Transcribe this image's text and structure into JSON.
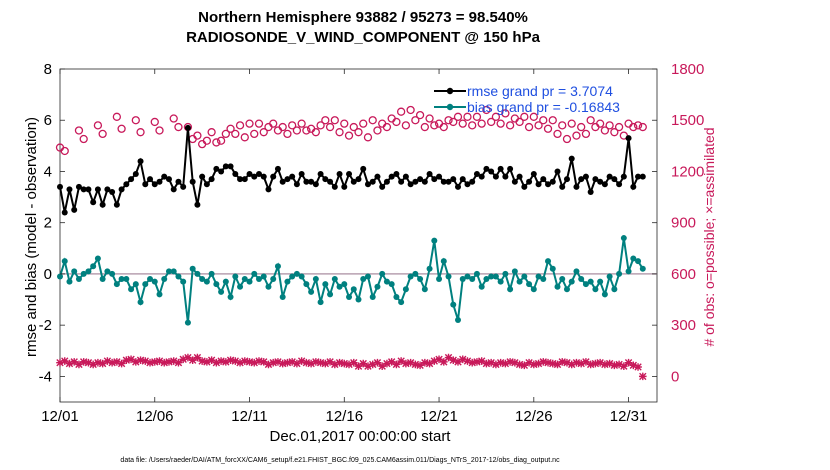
{
  "chart_data": {
    "type": "line",
    "title": "Northern Hemisphere 93882 / 95273 = 98.540%",
    "subtitle": "RADIOSONDE_V_WIND_COMPONENT @ 150 hPa",
    "xlabel": "Dec.01,2017 00:00:00 start",
    "ylabel_left": "rmse and bias (model - observation)",
    "ylabel_right": "# of obs: o=possible; ×=assimilated",
    "xlim": [
      1,
      32.5
    ],
    "ylim_left": [
      -5,
      8
    ],
    "ylim_right": [
      -150,
      1800
    ],
    "x_ticks": [
      1,
      6,
      11,
      16,
      21,
      26,
      31
    ],
    "x_tick_labels": [
      "12/01",
      "12/06",
      "12/11",
      "12/16",
      "12/21",
      "12/26",
      "12/31"
    ],
    "y_ticks_left": [
      -4,
      -2,
      0,
      2,
      4,
      6,
      8
    ],
    "y_tick_labels_left": [
      "-4",
      "-2",
      "0",
      "2",
      "4",
      "6",
      "8"
    ],
    "y_ticks_right": [
      0,
      300,
      600,
      900,
      1200,
      1500,
      1800
    ],
    "y_tick_labels_right": [
      "0",
      "300",
      "600",
      "900",
      "1200",
      "1500",
      "1800"
    ],
    "grid": false,
    "legend_position": "top-right",
    "footnote": "data file: /Users/raeder/DAI/ATM_forcXX/CAM6_setup/f.e21.FHIST_BGC.f09_025.CAM6assim.011/Diags_NTrS_2017-12/obs_diag_output.nc",
    "series": [
      {
        "name": "rmse",
        "legend": "rmse grand pr = 3.7074",
        "color": "#000000",
        "x": [
          1.0,
          1.25,
          1.5,
          1.75,
          2.0,
          2.25,
          2.5,
          2.75,
          3.0,
          3.25,
          3.5,
          3.75,
          4.0,
          4.25,
          4.5,
          4.75,
          5.0,
          5.25,
          5.5,
          5.75,
          6.0,
          6.25,
          6.5,
          6.75,
          7.0,
          7.25,
          7.5,
          7.75,
          8.0,
          8.25,
          8.5,
          8.75,
          9.0,
          9.25,
          9.5,
          9.75,
          10.0,
          10.25,
          10.5,
          10.75,
          11.0,
          11.25,
          11.5,
          11.75,
          12.0,
          12.25,
          12.5,
          12.75,
          13.0,
          13.25,
          13.5,
          13.75,
          14.0,
          14.25,
          14.5,
          14.75,
          15.0,
          15.25,
          15.5,
          15.75,
          16.0,
          16.25,
          16.5,
          16.75,
          17.0,
          17.25,
          17.5,
          17.75,
          18.0,
          18.25,
          18.5,
          18.75,
          19.0,
          19.25,
          19.5,
          19.75,
          20.0,
          20.25,
          20.5,
          20.75,
          21.0,
          21.25,
          21.5,
          21.75,
          22.0,
          22.25,
          22.5,
          22.75,
          23.0,
          23.25,
          23.5,
          23.75,
          24.0,
          24.25,
          24.5,
          24.75,
          25.0,
          25.25,
          25.5,
          25.75,
          26.0,
          26.25,
          26.5,
          26.75,
          27.0,
          27.25,
          27.5,
          27.75,
          28.0,
          28.25,
          28.5,
          28.75,
          29.0,
          29.25,
          29.5,
          29.75,
          30.0,
          30.25,
          30.5,
          30.75,
          31.0,
          31.25,
          31.5,
          31.75
        ],
        "values": [
          3.4,
          2.4,
          3.3,
          2.5,
          3.4,
          3.3,
          3.3,
          2.8,
          3.3,
          2.7,
          3.3,
          3.2,
          2.7,
          3.3,
          3.5,
          3.7,
          3.9,
          4.4,
          3.5,
          3.7,
          3.5,
          3.6,
          3.8,
          3.7,
          3.3,
          3.6,
          3.4,
          5.7,
          3.6,
          2.7,
          3.8,
          3.5,
          3.7,
          4.1,
          4.0,
          4.2,
          4.2,
          3.9,
          3.7,
          3.7,
          3.9,
          3.8,
          3.9,
          3.8,
          3.3,
          3.8,
          4.1,
          3.6,
          3.7,
          3.8,
          3.5,
          3.9,
          3.6,
          3.6,
          3.5,
          3.9,
          3.7,
          3.6,
          3.4,
          3.9,
          3.4,
          3.9,
          3.6,
          3.7,
          4.1,
          3.5,
          3.6,
          3.8,
          3.4,
          3.6,
          3.8,
          3.9,
          3.6,
          3.8,
          3.5,
          3.6,
          3.7,
          3.6,
          3.9,
          3.7,
          3.8,
          3.6,
          3.6,
          3.7,
          3.4,
          3.7,
          3.5,
          3.6,
          3.9,
          3.8,
          4.1,
          4.0,
          3.8,
          4.1,
          3.8,
          4.1,
          3.6,
          3.8,
          3.4,
          3.6,
          3.9,
          3.5,
          3.7,
          3.5,
          3.6,
          4.0,
          3.4,
          3.7,
          4.5,
          3.4,
          3.7,
          3.8,
          3.2,
          3.7,
          3.6,
          3.5,
          3.8,
          3.7,
          3.5,
          3.8,
          5.3,
          3.4,
          3.8,
          3.8
        ]
      },
      {
        "name": "bias",
        "legend": "bias grand pr = -0.16843",
        "color": "#00807f",
        "x": [
          1.0,
          1.25,
          1.5,
          1.75,
          2.0,
          2.25,
          2.5,
          2.75,
          3.0,
          3.25,
          3.5,
          3.75,
          4.0,
          4.25,
          4.5,
          4.75,
          5.0,
          5.25,
          5.5,
          5.75,
          6.0,
          6.25,
          6.5,
          6.75,
          7.0,
          7.25,
          7.5,
          7.75,
          8.0,
          8.25,
          8.5,
          8.75,
          9.0,
          9.25,
          9.5,
          9.75,
          10.0,
          10.25,
          10.5,
          10.75,
          11.0,
          11.25,
          11.5,
          11.75,
          12.0,
          12.25,
          12.5,
          12.75,
          13.0,
          13.25,
          13.5,
          13.75,
          14.0,
          14.25,
          14.5,
          14.75,
          15.0,
          15.25,
          15.5,
          15.75,
          16.0,
          16.25,
          16.5,
          16.75,
          17.0,
          17.25,
          17.5,
          17.75,
          18.0,
          18.25,
          18.5,
          18.75,
          19.0,
          19.25,
          19.5,
          19.75,
          20.0,
          20.25,
          20.5,
          20.75,
          21.0,
          21.25,
          21.5,
          21.75,
          22.0,
          22.25,
          22.5,
          22.75,
          23.0,
          23.25,
          23.5,
          23.75,
          24.0,
          24.25,
          24.5,
          24.75,
          25.0,
          25.25,
          25.5,
          25.75,
          26.0,
          26.25,
          26.5,
          26.75,
          27.0,
          27.25,
          27.5,
          27.75,
          28.0,
          28.25,
          28.5,
          28.75,
          29.0,
          29.25,
          29.5,
          29.75,
          30.0,
          30.25,
          30.5,
          30.75,
          31.0,
          31.25,
          31.5,
          31.75
        ],
        "values": [
          -0.1,
          0.5,
          -0.3,
          0.1,
          -0.2,
          0.0,
          0.1,
          0.3,
          0.6,
          -0.2,
          0.1,
          0.0,
          -0.4,
          -0.2,
          -0.2,
          -0.6,
          -0.4,
          -1.1,
          -0.4,
          -0.2,
          -0.3,
          -0.8,
          -0.2,
          0.1,
          0.1,
          -0.1,
          -0.3,
          -1.9,
          0.2,
          0.0,
          -0.2,
          -0.3,
          0.0,
          -0.4,
          -0.7,
          -0.3,
          -0.9,
          -0.1,
          -0.5,
          -0.2,
          -0.3,
          0.0,
          -0.2,
          -0.1,
          -0.5,
          -0.2,
          0.3,
          -0.9,
          -0.3,
          -0.1,
          0.0,
          -0.1,
          -0.4,
          -0.7,
          -0.2,
          -1.1,
          -0.4,
          -0.8,
          -0.2,
          -0.5,
          -0.4,
          -0.9,
          -0.6,
          -1.0,
          -0.2,
          -0.1,
          -0.9,
          -0.5,
          0.0,
          -0.3,
          -0.4,
          -0.9,
          -1.1,
          -0.6,
          -0.1,
          0.0,
          -0.2,
          -0.6,
          0.2,
          1.3,
          -0.2,
          0.5,
          -0.1,
          -1.2,
          -1.8,
          -0.2,
          -0.1,
          -0.2,
          0.0,
          -0.5,
          -0.2,
          -0.1,
          -0.1,
          -0.3,
          0.0,
          -0.6,
          0.1,
          -0.3,
          -0.1,
          -0.4,
          -0.6,
          -0.1,
          -0.2,
          0.5,
          0.2,
          -0.5,
          -0.2,
          -0.6,
          -0.3,
          0.1,
          -0.2,
          -0.4,
          -0.3,
          -0.6,
          -0.3,
          -0.8,
          -0.1,
          -0.6,
          0.0,
          1.4,
          0.1,
          0.6,
          0.5,
          0.2
        ]
      },
      {
        "name": "possible",
        "color": "#c8195a",
        "marker": "o",
        "x": [
          1.0,
          1.25,
          2.0,
          2.25,
          3.0,
          3.25,
          4.0,
          4.25,
          5.0,
          5.25,
          6.0,
          6.25,
          7.0,
          7.25,
          7.75,
          8.0,
          8.25,
          8.5,
          8.75,
          9.0,
          9.25,
          9.5,
          9.75,
          10.0,
          10.25,
          10.5,
          10.75,
          11.0,
          11.25,
          11.5,
          11.75,
          12.0,
          12.25,
          12.5,
          12.75,
          13.0,
          13.25,
          13.5,
          13.75,
          14.0,
          14.25,
          14.5,
          14.75,
          15.0,
          15.25,
          15.5,
          15.75,
          16.0,
          16.25,
          16.5,
          16.75,
          17.0,
          17.25,
          17.5,
          17.75,
          18.0,
          18.25,
          18.5,
          18.75,
          19.0,
          19.25,
          19.5,
          19.75,
          20.0,
          20.25,
          20.5,
          20.75,
          21.0,
          21.25,
          21.5,
          21.75,
          22.0,
          22.25,
          22.5,
          22.75,
          23.0,
          23.25,
          23.5,
          23.75,
          24.0,
          24.25,
          24.5,
          24.75,
          25.0,
          25.25,
          25.5,
          25.75,
          26.0,
          26.25,
          26.5,
          26.75,
          27.0,
          27.25,
          27.5,
          27.75,
          28.0,
          28.25,
          28.5,
          28.75,
          29.0,
          29.25,
          29.5,
          29.75,
          30.0,
          30.25,
          30.5,
          30.75,
          31.0,
          31.25,
          31.5,
          31.75
        ],
        "values": [
          1340,
          1320,
          1440,
          1390,
          1470,
          1420,
          1520,
          1450,
          1500,
          1430,
          1490,
          1440,
          1510,
          1460,
          1460,
          1390,
          1410,
          1360,
          1380,
          1430,
          1370,
          1380,
          1420,
          1450,
          1420,
          1470,
          1400,
          1480,
          1420,
          1480,
          1430,
          1460,
          1480,
          1440,
          1460,
          1420,
          1470,
          1440,
          1480,
          1440,
          1450,
          1430,
          1470,
          1500,
          1460,
          1500,
          1430,
          1480,
          1410,
          1460,
          1430,
          1480,
          1400,
          1500,
          1440,
          1480,
          1460,
          1510,
          1490,
          1550,
          1470,
          1560,
          1500,
          1530,
          1460,
          1510,
          1470,
          1480,
          1460,
          1500,
          1490,
          1520,
          1480,
          1520,
          1470,
          1520,
          1480,
          1560,
          1490,
          1520,
          1480,
          1540,
          1470,
          1510,
          1490,
          1520,
          1460,
          1520,
          1470,
          1500,
          1450,
          1500,
          1420,
          1470,
          1390,
          1480,
          1410,
          1460,
          1420,
          1500,
          1460,
          1480,
          1440,
          1470,
          1430,
          1460,
          1410,
          1480,
          1460,
          1470,
          1460
        ]
      },
      {
        "name": "assimilated",
        "color": "#c8195a",
        "marker": "x",
        "x": [
          1.0,
          1.25,
          1.5,
          1.75,
          2.0,
          2.25,
          2.5,
          2.75,
          3.0,
          3.25,
          3.5,
          3.75,
          4.0,
          4.25,
          4.5,
          4.75,
          5.0,
          5.25,
          5.5,
          5.75,
          6.0,
          6.25,
          6.5,
          6.75,
          7.0,
          7.25,
          7.5,
          7.75,
          8.0,
          8.25,
          8.5,
          8.75,
          9.0,
          9.25,
          9.5,
          9.75,
          10.0,
          10.25,
          10.5,
          10.75,
          11.0,
          11.25,
          11.5,
          11.75,
          12.0,
          12.25,
          12.5,
          12.75,
          13.0,
          13.25,
          13.5,
          13.75,
          14.0,
          14.25,
          14.5,
          14.75,
          15.0,
          15.25,
          15.5,
          15.75,
          16.0,
          16.25,
          16.5,
          16.75,
          17.0,
          17.25,
          17.5,
          17.75,
          18.0,
          18.25,
          18.5,
          18.75,
          19.0,
          19.25,
          19.5,
          19.75,
          20.0,
          20.25,
          20.5,
          20.75,
          21.0,
          21.25,
          21.5,
          21.75,
          22.0,
          22.25,
          22.5,
          22.75,
          23.0,
          23.25,
          23.5,
          23.75,
          24.0,
          24.25,
          24.5,
          24.75,
          25.0,
          25.25,
          25.5,
          25.75,
          26.0,
          26.25,
          26.5,
          26.75,
          27.0,
          27.25,
          27.5,
          27.75,
          28.0,
          28.25,
          28.5,
          28.75,
          29.0,
          29.25,
          29.5,
          29.75,
          30.0,
          30.25,
          30.5,
          30.75,
          31.0,
          31.25,
          31.5,
          31.75
        ],
        "values": [
          80,
          90,
          75,
          85,
          70,
          85,
          80,
          70,
          80,
          75,
          90,
          80,
          85,
          75,
          95,
          100,
          85,
          95,
          90,
          80,
          85,
          90,
          80,
          85,
          90,
          80,
          100,
          110,
          95,
          110,
          90,
          85,
          95,
          80,
          90,
          85,
          95,
          90,
          80,
          90,
          85,
          80,
          90,
          85,
          70,
          80,
          85,
          75,
          80,
          85,
          75,
          90,
          80,
          75,
          85,
          80,
          75,
          85,
          70,
          80,
          75,
          70,
          80,
          60,
          75,
          60,
          70,
          80,
          60,
          75,
          85,
          70,
          90,
          75,
          80,
          70,
          65,
          80,
          75,
          90,
          100,
          85,
          110,
          95,
          85,
          100,
          90,
          80,
          85,
          90,
          75,
          80,
          70,
          80,
          75,
          85,
          80,
          70,
          65,
          80,
          70,
          75,
          85,
          80,
          75,
          70,
          85,
          80,
          70,
          80,
          75,
          85,
          70,
          75,
          80,
          70,
          75,
          65,
          70,
          60,
          80,
          65,
          55,
          0
        ]
      }
    ]
  }
}
